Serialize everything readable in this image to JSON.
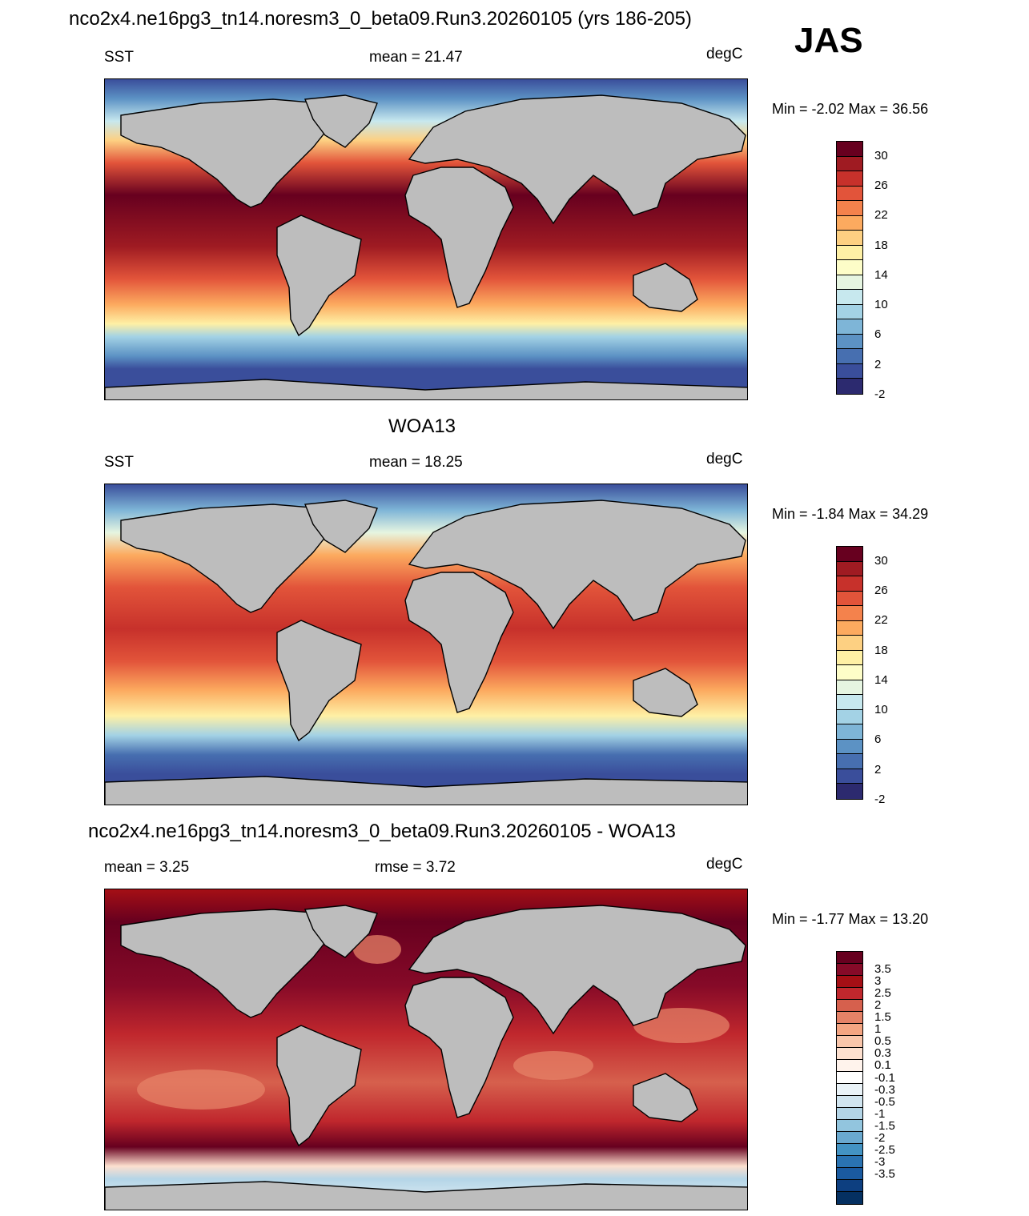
{
  "figure_title": "nco2x4.ne16pg3_tn14.noresm3_0_beta09.Run3.20260105 (yrs 186-205)",
  "season": "JAS",
  "panels": [
    {
      "title": "",
      "left": "SST",
      "center": "mean =  21.47",
      "right": "degC",
      "minmax": "Min =  -2.02 Max =  36.56"
    },
    {
      "title": "WOA13",
      "left": "SST",
      "center": "mean =  18.25",
      "right": "degC",
      "minmax": "Min =  -1.84 Max =  34.29"
    },
    {
      "title": "nco2x4.ne16pg3_tn14.noresm3_0_beta09.Run3.20260105 - WOA13",
      "left": "mean =   3.25",
      "center": "rmse =   3.72",
      "right": "degC",
      "minmax": "Min =  -1.77 Max =  13.20"
    }
  ],
  "sst_colorbar": {
    "labels": [
      "30",
      "26",
      "22",
      "18",
      "14",
      "10",
      "6",
      "2",
      "-2"
    ],
    "colors": [
      "#67001f",
      "#9f1b22",
      "#c7312b",
      "#e2543a",
      "#f4824c",
      "#fcaa5f",
      "#fdd082",
      "#fef0a5",
      "#fdfdc8",
      "#e6f5e1",
      "#c7e8ee",
      "#a3d2e5",
      "#7eb5d7",
      "#5c92c4",
      "#476fb0",
      "#3a4e9b",
      "#2c2a6f"
    ]
  },
  "diff_colorbar": {
    "labels": [
      "3.5",
      "3",
      "2.5",
      "2",
      "1.5",
      "1",
      "0.5",
      "0.3",
      "0.1",
      "-0.1",
      "-0.3",
      "-0.5",
      "-1",
      "-1.5",
      "-2",
      "-2.5",
      "-3",
      "-3.5"
    ],
    "colors": [
      "#67001f",
      "#860a28",
      "#a50f15",
      "#c0272d",
      "#d6604d",
      "#e58267",
      "#f4a582",
      "#f9c6ab",
      "#fde0cf",
      "#fff3ec",
      "#ffffff",
      "#eaf3f8",
      "#d1e5f0",
      "#b4d5e7",
      "#92c5de",
      "#6aa9cf",
      "#4393c3",
      "#2a73b2",
      "#1a5aa0",
      "#0d3f80",
      "#053061"
    ]
  },
  "palette": {
    "land": "#bdbdbd",
    "coast": "#000000"
  }
}
